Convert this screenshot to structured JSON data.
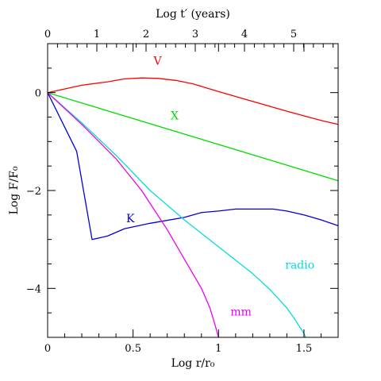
{
  "chart_data": {
    "type": "line",
    "xlabel": "Log r/r₀",
    "top_xlabel": "Log t′ (years)",
    "ylabel": "Log F/F₀",
    "xlim": [
      0,
      1.7
    ],
    "ylim": [
      -5,
      1
    ],
    "grid": false,
    "legend": "inline labels",
    "x_ticks": [
      0,
      0.5,
      1,
      1.5
    ],
    "x_tick_labels": [
      "0",
      "0.5",
      "1",
      "1.5"
    ],
    "y_ticks": [
      -4,
      -2,
      0
    ],
    "y_tick_labels": [
      "−4",
      "−2",
      "0"
    ],
    "top_ticks": [
      0,
      1,
      2,
      3,
      4,
      5
    ],
    "top_tick_labels": [
      "0",
      "1",
      "2",
      "3",
      "4",
      "5"
    ],
    "top_axis_x_per_unit": 0.288,
    "series": [
      {
        "name": "V",
        "color": "#ff0000",
        "label_at": [
          0.62,
          0.57
        ],
        "points": [
          [
            0,
            0
          ],
          [
            0.2,
            0.15
          ],
          [
            0.35,
            0.22
          ],
          [
            0.45,
            0.28
          ],
          [
            0.55,
            0.3
          ],
          [
            0.65,
            0.29
          ],
          [
            0.75,
            0.25
          ],
          [
            0.85,
            0.18
          ],
          [
            1.0,
            0.02
          ],
          [
            1.2,
            -0.18
          ],
          [
            1.4,
            -0.38
          ],
          [
            1.6,
            -0.57
          ],
          [
            1.7,
            -0.65
          ]
        ]
      },
      {
        "name": "X",
        "color": "#00dd00",
        "label_at": [
          0.72,
          -0.55
        ],
        "points": [
          [
            0,
            0
          ],
          [
            1.7,
            -1.8
          ]
        ]
      },
      {
        "name": "K",
        "color": "#0000dd",
        "label_at": [
          0.46,
          -2.65
        ],
        "points": [
          [
            0,
            0
          ],
          [
            0.17,
            -1.2
          ],
          [
            0.26,
            -3.0
          ],
          [
            0.35,
            -2.93
          ],
          [
            0.45,
            -2.78
          ],
          [
            0.6,
            -2.67
          ],
          [
            0.8,
            -2.55
          ],
          [
            0.9,
            -2.45
          ],
          [
            1.0,
            -2.42
          ],
          [
            1.1,
            -2.38
          ],
          [
            1.2,
            -2.38
          ],
          [
            1.32,
            -2.38
          ],
          [
            1.4,
            -2.42
          ],
          [
            1.5,
            -2.5
          ],
          [
            1.6,
            -2.6
          ],
          [
            1.7,
            -2.72
          ]
        ]
      },
      {
        "name": "radio",
        "color": "#00dddd",
        "label_at": [
          1.39,
          -3.6
        ],
        "points": [
          [
            0,
            0
          ],
          [
            0.2,
            -0.62
          ],
          [
            0.4,
            -1.28
          ],
          [
            0.6,
            -2.0
          ],
          [
            0.8,
            -2.6
          ],
          [
            1.0,
            -3.15
          ],
          [
            1.2,
            -3.7
          ],
          [
            1.3,
            -4.02
          ],
          [
            1.4,
            -4.4
          ],
          [
            1.45,
            -4.65
          ],
          [
            1.5,
            -4.92
          ],
          [
            1.51,
            -5.0
          ]
        ]
      },
      {
        "name": "mm",
        "color": "#ee00ee",
        "label_at": [
          1.07,
          -4.55
        ],
        "points": [
          [
            0,
            0
          ],
          [
            0.2,
            -0.65
          ],
          [
            0.4,
            -1.35
          ],
          [
            0.55,
            -2.0
          ],
          [
            0.7,
            -2.8
          ],
          [
            0.8,
            -3.4
          ],
          [
            0.9,
            -4.0
          ],
          [
            0.95,
            -4.4
          ],
          [
            0.98,
            -4.75
          ],
          [
            1.0,
            -5.0
          ]
        ]
      }
    ]
  }
}
